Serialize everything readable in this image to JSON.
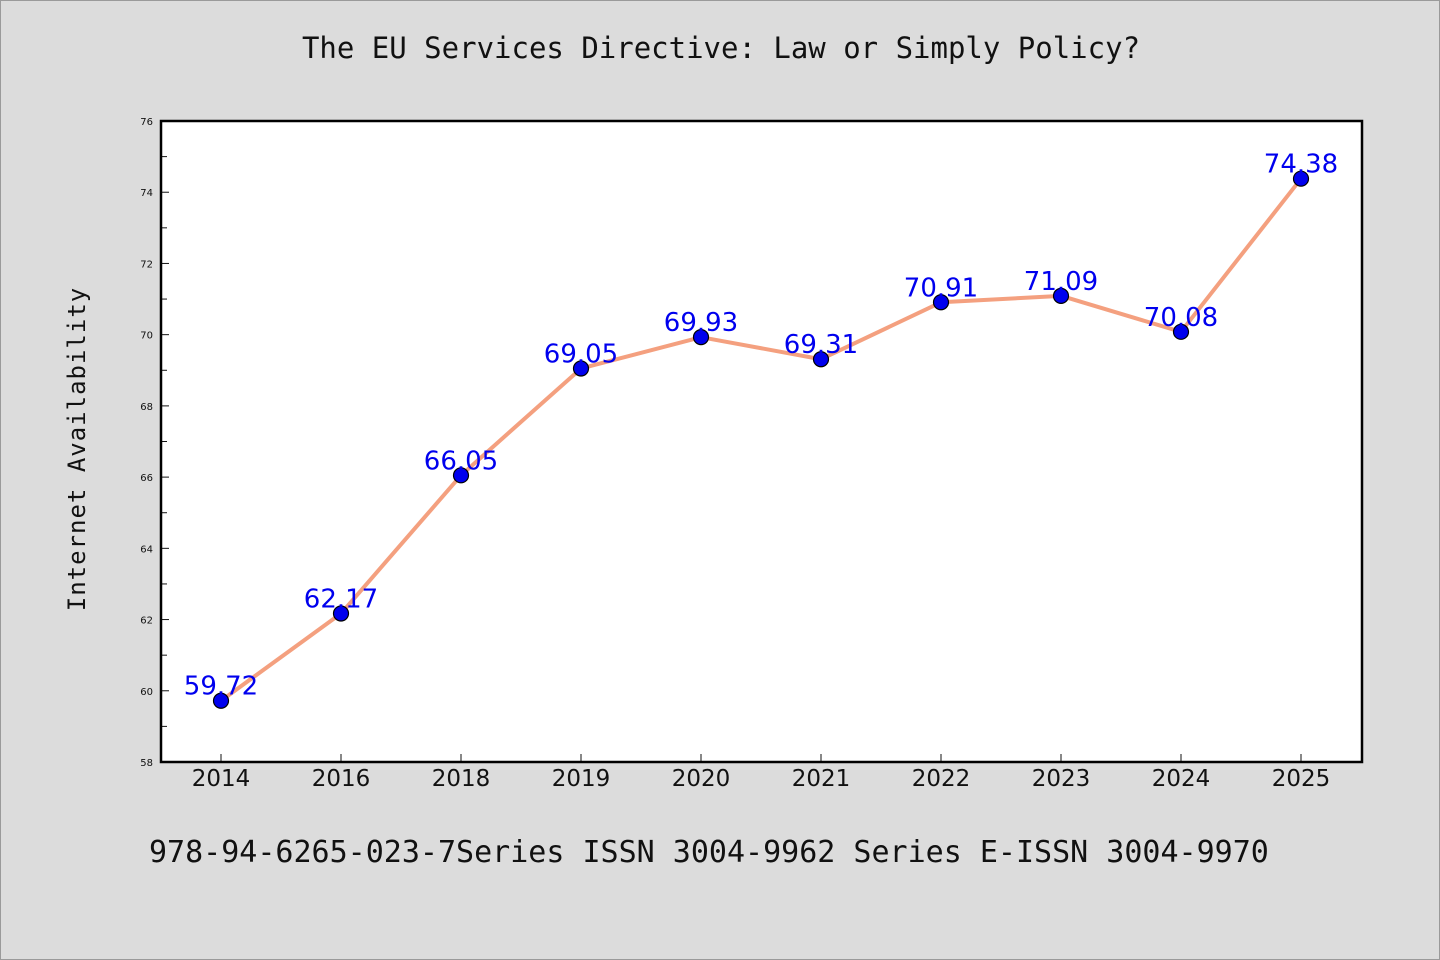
{
  "chart_data": {
    "type": "line",
    "title": "The EU Services Directive: Law or Simply Policy?",
    "xlabel": "",
    "ylabel": "Internet Availability",
    "categories": [
      "2014",
      "2016",
      "2018",
      "2019",
      "2020",
      "2021",
      "2022",
      "2023",
      "2024",
      "2025"
    ],
    "values": [
      59.72,
      62.17,
      66.05,
      69.05,
      69.93,
      69.31,
      70.91,
      71.09,
      70.08,
      74.38
    ],
    "value_labels": [
      "59.72",
      "62.17",
      "66.05",
      "69.05",
      "69.93",
      "69.31",
      "70.91",
      "71.09",
      "70.08",
      "74.38"
    ],
    "ylim": [
      58,
      76
    ],
    "yticks": [
      "58",
      "60",
      "62",
      "64",
      "66",
      "68",
      "70",
      "72",
      "74",
      "76"
    ],
    "grid": false,
    "line_color": "#f4a07f",
    "marker_color": "#0000ee",
    "label_color": "#0000ee",
    "footer": "978-94-6265-023-7Series ISSN 3004-9962 Series E-ISSN 3004-9970"
  }
}
